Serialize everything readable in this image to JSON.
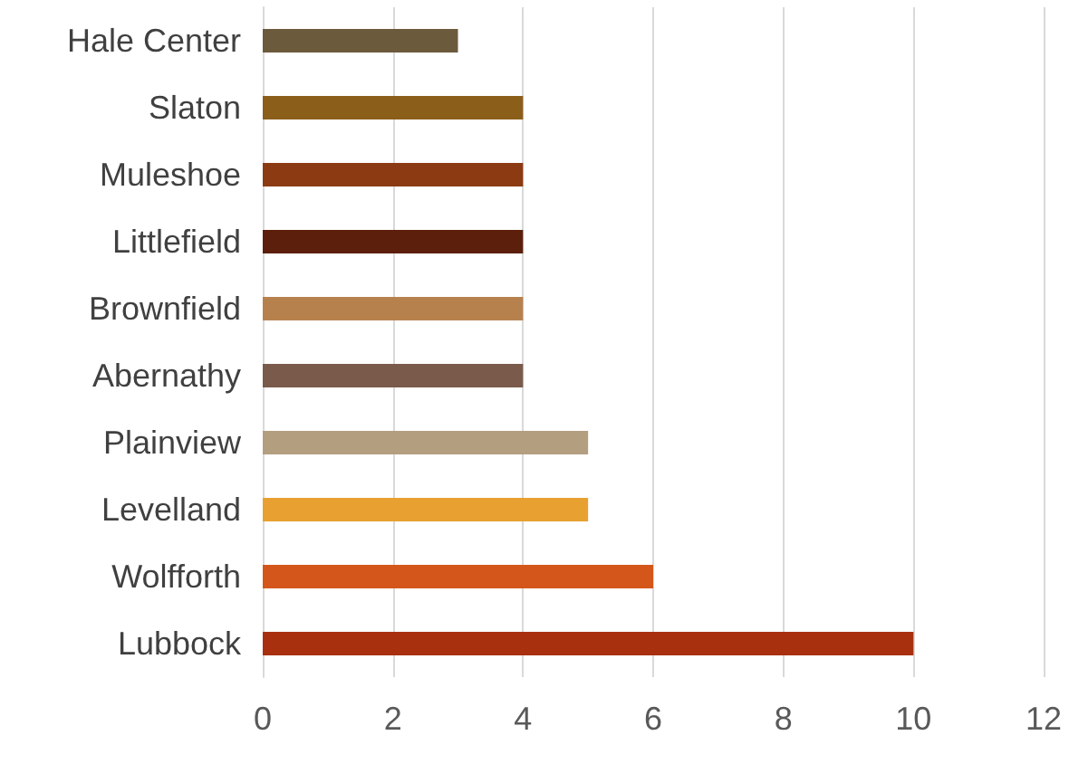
{
  "chart_data": {
    "type": "bar",
    "orientation": "horizontal",
    "categories": [
      "Hale Center",
      "Slaton",
      "Muleshoe",
      "Littlefield",
      "Brownfield",
      "Abernathy",
      "Plainview",
      "Levelland",
      "Wolfforth",
      "Lubbock"
    ],
    "values": [
      3,
      4,
      4,
      4,
      4,
      4,
      5,
      5,
      6,
      10
    ],
    "colors": [
      "#6b5a3c",
      "#8b5e1a",
      "#8b3a12",
      "#5c1f0b",
      "#b7814e",
      "#7a5a4a",
      "#b39e80",
      "#e8a030",
      "#d4561a",
      "#a8300f"
    ],
    "xlim": [
      0,
      12
    ],
    "xticks": [
      0,
      2,
      4,
      6,
      8,
      10,
      12
    ],
    "grid": "x"
  }
}
